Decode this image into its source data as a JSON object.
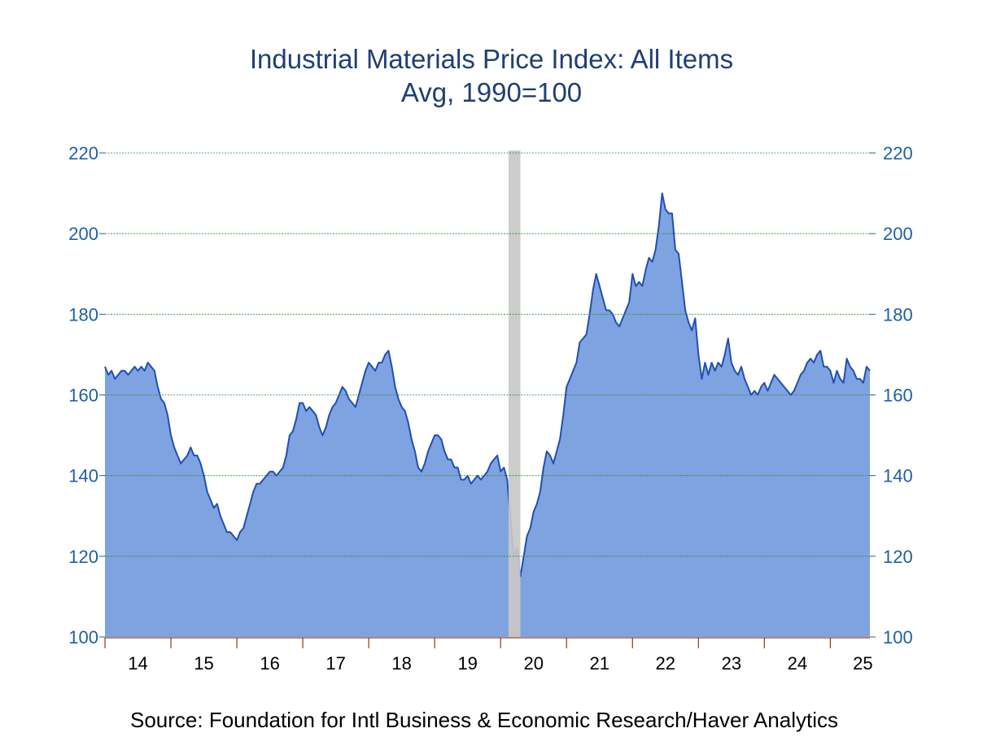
{
  "source": "Source:  Foundation for Intl Business & Economic Research/Haver Analytics",
  "colors": {
    "line": "#1f4fb5",
    "fill": "#7fa2e0",
    "grid": "#2e8b2e",
    "axis_text": "#1f5fa8",
    "title": "#1f3f73",
    "recession": "#c8c8c8"
  },
  "chart_data": {
    "type": "area",
    "title": "Industrial Materials Price Index: All Items",
    "subtitle": "Avg, 1990=100",
    "xlabel": "",
    "ylabel": "",
    "ylim": [
      100,
      220
    ],
    "xlim": [
      2014.0,
      2025.6
    ],
    "yticks": [
      100,
      120,
      140,
      160,
      180,
      200,
      220
    ],
    "y_tick_labels": [
      "100",
      "120",
      "140",
      "160",
      "180",
      "200",
      "220"
    ],
    "x_tick_labels": [
      "14",
      "15",
      "16",
      "17",
      "18",
      "19",
      "20",
      "21",
      "22",
      "23",
      "24",
      "25"
    ],
    "grid": true,
    "recession_shading": [
      2020.12,
      2020.3
    ],
    "series": [
      {
        "name": "",
        "points": [
          [
            2014.0,
            167
          ],
          [
            2014.05,
            165
          ],
          [
            2014.1,
            166
          ],
          [
            2014.15,
            164
          ],
          [
            2014.2,
            165
          ],
          [
            2014.25,
            166
          ],
          [
            2014.3,
            166
          ],
          [
            2014.35,
            165
          ],
          [
            2014.4,
            166
          ],
          [
            2014.45,
            167
          ],
          [
            2014.5,
            166
          ],
          [
            2014.55,
            167
          ],
          [
            2014.6,
            166
          ],
          [
            2014.65,
            168
          ],
          [
            2014.7,
            167
          ],
          [
            2014.75,
            166
          ],
          [
            2014.8,
            162
          ],
          [
            2014.85,
            159
          ],
          [
            2014.9,
            158
          ],
          [
            2014.95,
            155
          ],
          [
            2015.0,
            150
          ],
          [
            2015.05,
            147
          ],
          [
            2015.1,
            145
          ],
          [
            2015.15,
            143
          ],
          [
            2015.2,
            144
          ],
          [
            2015.25,
            145
          ],
          [
            2015.3,
            147
          ],
          [
            2015.35,
            145
          ],
          [
            2015.4,
            145
          ],
          [
            2015.45,
            143
          ],
          [
            2015.5,
            140
          ],
          [
            2015.55,
            136
          ],
          [
            2015.6,
            134
          ],
          [
            2015.65,
            132
          ],
          [
            2015.7,
            133
          ],
          [
            2015.75,
            130
          ],
          [
            2015.8,
            128
          ],
          [
            2015.85,
            126
          ],
          [
            2015.9,
            126
          ],
          [
            2015.95,
            125
          ],
          [
            2016.0,
            124
          ],
          [
            2016.05,
            126
          ],
          [
            2016.1,
            127
          ],
          [
            2016.15,
            130
          ],
          [
            2016.2,
            133
          ],
          [
            2016.25,
            136
          ],
          [
            2016.3,
            138
          ],
          [
            2016.35,
            138
          ],
          [
            2016.4,
            139
          ],
          [
            2016.45,
            140
          ],
          [
            2016.5,
            141
          ],
          [
            2016.55,
            141
          ],
          [
            2016.6,
            140
          ],
          [
            2016.65,
            141
          ],
          [
            2016.7,
            142
          ],
          [
            2016.75,
            145
          ],
          [
            2016.8,
            150
          ],
          [
            2016.85,
            151
          ],
          [
            2016.9,
            154
          ],
          [
            2016.95,
            158
          ],
          [
            2017.0,
            158
          ],
          [
            2017.05,
            156
          ],
          [
            2017.1,
            157
          ],
          [
            2017.15,
            156
          ],
          [
            2017.2,
            155
          ],
          [
            2017.25,
            152
          ],
          [
            2017.3,
            150
          ],
          [
            2017.35,
            152
          ],
          [
            2017.4,
            155
          ],
          [
            2017.45,
            157
          ],
          [
            2017.5,
            158
          ],
          [
            2017.55,
            160
          ],
          [
            2017.6,
            162
          ],
          [
            2017.65,
            161
          ],
          [
            2017.7,
            159
          ],
          [
            2017.75,
            158
          ],
          [
            2017.8,
            157
          ],
          [
            2017.85,
            160
          ],
          [
            2017.9,
            163
          ],
          [
            2017.95,
            166
          ],
          [
            2018.0,
            168
          ],
          [
            2018.05,
            167
          ],
          [
            2018.1,
            166
          ],
          [
            2018.15,
            168
          ],
          [
            2018.2,
            168
          ],
          [
            2018.25,
            170
          ],
          [
            2018.3,
            171
          ],
          [
            2018.35,
            167
          ],
          [
            2018.4,
            162
          ],
          [
            2018.45,
            159
          ],
          [
            2018.5,
            157
          ],
          [
            2018.55,
            156
          ],
          [
            2018.6,
            153
          ],
          [
            2018.65,
            149
          ],
          [
            2018.7,
            146
          ],
          [
            2018.75,
            142
          ],
          [
            2018.8,
            141
          ],
          [
            2018.85,
            143
          ],
          [
            2018.9,
            146
          ],
          [
            2018.95,
            148
          ],
          [
            2019.0,
            150
          ],
          [
            2019.05,
            150
          ],
          [
            2019.1,
            149
          ],
          [
            2019.15,
            146
          ],
          [
            2019.2,
            144
          ],
          [
            2019.25,
            144
          ],
          [
            2019.3,
            142
          ],
          [
            2019.35,
            142
          ],
          [
            2019.4,
            139
          ],
          [
            2019.45,
            139
          ],
          [
            2019.5,
            140
          ],
          [
            2019.55,
            138
          ],
          [
            2019.6,
            139
          ],
          [
            2019.65,
            140
          ],
          [
            2019.7,
            139
          ],
          [
            2019.75,
            140
          ],
          [
            2019.8,
            141
          ],
          [
            2019.85,
            143
          ],
          [
            2019.9,
            144
          ],
          [
            2019.95,
            145
          ],
          [
            2020.0,
            141
          ],
          [
            2020.05,
            142
          ],
          [
            2020.1,
            139
          ],
          [
            2020.15,
            129
          ],
          [
            2020.2,
            120
          ],
          [
            2020.25,
            122
          ],
          [
            2020.3,
            115
          ],
          [
            2020.35,
            120
          ],
          [
            2020.4,
            125
          ],
          [
            2020.45,
            127
          ],
          [
            2020.5,
            131
          ],
          [
            2020.55,
            133
          ],
          [
            2020.6,
            136
          ],
          [
            2020.65,
            142
          ],
          [
            2020.7,
            146
          ],
          [
            2020.75,
            145
          ],
          [
            2020.8,
            143
          ],
          [
            2020.85,
            146
          ],
          [
            2020.9,
            149
          ],
          [
            2020.95,
            155
          ],
          [
            2021.0,
            162
          ],
          [
            2021.05,
            164
          ],
          [
            2021.1,
            166
          ],
          [
            2021.15,
            168
          ],
          [
            2021.2,
            173
          ],
          [
            2021.25,
            174
          ],
          [
            2021.3,
            175
          ],
          [
            2021.35,
            180
          ],
          [
            2021.4,
            186
          ],
          [
            2021.45,
            190
          ],
          [
            2021.5,
            187
          ],
          [
            2021.55,
            184
          ],
          [
            2021.6,
            181
          ],
          [
            2021.65,
            181
          ],
          [
            2021.7,
            180
          ],
          [
            2021.75,
            178
          ],
          [
            2021.8,
            177
          ],
          [
            2021.85,
            179
          ],
          [
            2021.9,
            181
          ],
          [
            2021.95,
            183
          ],
          [
            2022.0,
            190
          ],
          [
            2022.05,
            187
          ],
          [
            2022.1,
            188
          ],
          [
            2022.15,
            187
          ],
          [
            2022.2,
            191
          ],
          [
            2022.25,
            194
          ],
          [
            2022.3,
            193
          ],
          [
            2022.35,
            196
          ],
          [
            2022.4,
            202
          ],
          [
            2022.45,
            210
          ],
          [
            2022.5,
            206
          ],
          [
            2022.55,
            205
          ],
          [
            2022.6,
            205
          ],
          [
            2022.65,
            196
          ],
          [
            2022.7,
            195
          ],
          [
            2022.75,
            188
          ],
          [
            2022.8,
            181
          ],
          [
            2022.85,
            178
          ],
          [
            2022.9,
            176
          ],
          [
            2022.95,
            179
          ],
          [
            2023.0,
            170
          ],
          [
            2023.05,
            164
          ],
          [
            2023.1,
            168
          ],
          [
            2023.15,
            165
          ],
          [
            2023.2,
            168
          ],
          [
            2023.25,
            166
          ],
          [
            2023.3,
            168
          ],
          [
            2023.35,
            167
          ],
          [
            2023.4,
            170
          ],
          [
            2023.45,
            174
          ],
          [
            2023.5,
            168
          ],
          [
            2023.55,
            166
          ],
          [
            2023.6,
            165
          ],
          [
            2023.65,
            167
          ],
          [
            2023.7,
            164
          ],
          [
            2023.75,
            162
          ],
          [
            2023.8,
            160
          ],
          [
            2023.85,
            161
          ],
          [
            2023.9,
            160
          ],
          [
            2023.95,
            162
          ],
          [
            2024.0,
            163
          ],
          [
            2024.05,
            161
          ],
          [
            2024.1,
            163
          ],
          [
            2024.15,
            165
          ],
          [
            2024.2,
            164
          ],
          [
            2024.25,
            163
          ],
          [
            2024.3,
            162
          ],
          [
            2024.35,
            161
          ],
          [
            2024.4,
            160
          ],
          [
            2024.45,
            161
          ],
          [
            2024.5,
            163
          ],
          [
            2024.55,
            165
          ],
          [
            2024.6,
            166
          ],
          [
            2024.65,
            168
          ],
          [
            2024.7,
            169
          ],
          [
            2024.75,
            168
          ],
          [
            2024.8,
            170
          ],
          [
            2024.85,
            171
          ],
          [
            2024.9,
            167
          ],
          [
            2024.95,
            167
          ],
          [
            2025.0,
            166
          ],
          [
            2025.05,
            163
          ],
          [
            2025.1,
            166
          ],
          [
            2025.15,
            164
          ],
          [
            2025.2,
            163
          ],
          [
            2025.25,
            169
          ],
          [
            2025.3,
            167
          ],
          [
            2025.35,
            166
          ],
          [
            2025.4,
            164
          ],
          [
            2025.45,
            164
          ],
          [
            2025.5,
            163
          ],
          [
            2025.55,
            167
          ],
          [
            2025.6,
            166
          ]
        ]
      }
    ]
  }
}
